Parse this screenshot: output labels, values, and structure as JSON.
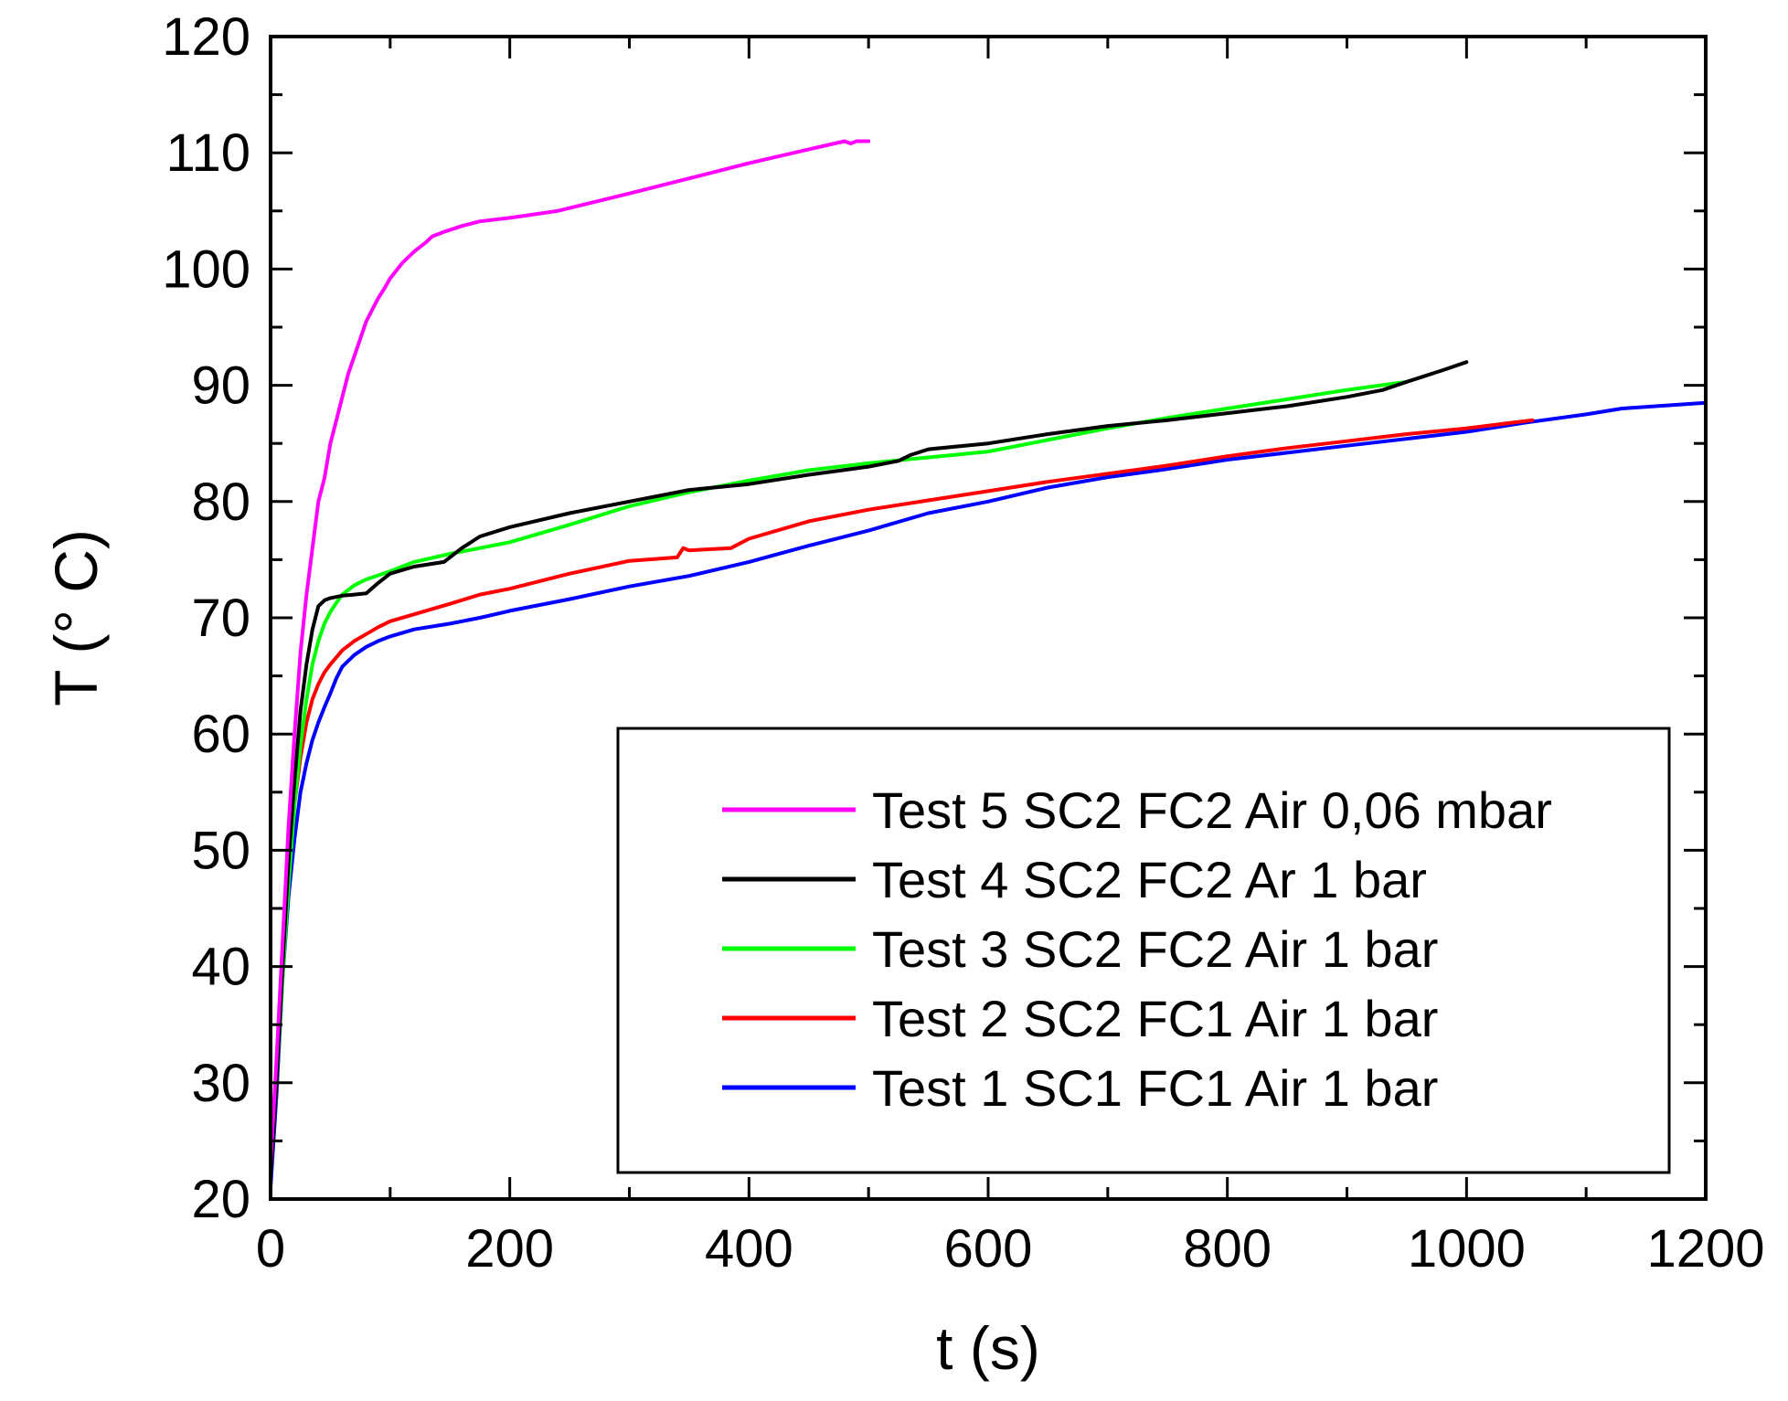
{
  "chart_data": {
    "type": "line",
    "title": "",
    "xlabel": "t (s)",
    "ylabel": "T (° C)",
    "xlim": [
      0,
      1200
    ],
    "ylim": [
      20,
      120
    ],
    "xticks": [
      0,
      200,
      400,
      600,
      800,
      1000,
      1200
    ],
    "yticks": [
      20,
      30,
      40,
      50,
      60,
      70,
      80,
      90,
      100,
      110,
      120
    ],
    "xtick_labels": [
      "0",
      "200",
      "400",
      "600",
      "800",
      "1000",
      "1200"
    ],
    "ytick_labels": [
      "20",
      "30",
      "40",
      "50",
      "60",
      "70",
      "80",
      "90",
      "100",
      "110",
      "120"
    ],
    "grid": false,
    "legend_position": "bottom-right",
    "series": [
      {
        "name": "Test 5 SC2 FC2 Air 0,06 mbar",
        "color": "#ff00ff",
        "x": [
          0,
          5,
          10,
          15,
          20,
          25,
          30,
          35,
          40,
          45,
          50,
          55,
          60,
          65,
          70,
          75,
          80,
          85,
          90,
          95,
          100,
          110,
          120,
          130,
          135,
          145,
          160,
          175,
          200,
          220,
          240,
          260,
          300,
          350,
          400,
          450,
          480,
          485,
          490,
          495,
          500
        ],
        "values": [
          23,
          32,
          42,
          52,
          60,
          67,
          72,
          76,
          80,
          82,
          85,
          87,
          89,
          91,
          92.5,
          94,
          95.5,
          96.5,
          97.5,
          98.3,
          99.2,
          100.5,
          101.5,
          102.3,
          102.8,
          103.2,
          103.7,
          104.1,
          104.4,
          104.7,
          105,
          105.5,
          106.5,
          107.8,
          109.1,
          110.3,
          111,
          110.8,
          111,
          111,
          111
        ]
      },
      {
        "name": "Test 4 SC2 FC2 Ar 1 bar",
        "color": "#000000",
        "x": [
          0,
          5,
          10,
          15,
          20,
          25,
          30,
          35,
          40,
          45,
          50,
          60,
          70,
          80,
          90,
          100,
          120,
          145,
          160,
          175,
          200,
          250,
          300,
          350,
          400,
          450,
          500,
          525,
          535,
          550,
          600,
          650,
          700,
          750,
          800,
          850,
          900,
          930,
          950,
          980,
          1000
        ],
        "values": [
          22,
          30,
          40,
          49,
          56,
          62,
          66,
          69,
          71,
          71.5,
          71.7,
          71.9,
          72,
          72.1,
          73,
          73.8,
          74.4,
          74.8,
          76,
          77,
          77.8,
          79,
          80,
          81,
          81.5,
          82.3,
          83,
          83.5,
          84,
          84.5,
          85,
          85.8,
          86.5,
          87,
          87.6,
          88.2,
          89,
          89.6,
          90.3,
          91.3,
          92
        ]
      },
      {
        "name": "Test 3 SC2 FC2 Air 1 bar",
        "color": "#00ff00",
        "x": [
          0,
          5,
          10,
          15,
          20,
          25,
          30,
          35,
          40,
          45,
          50,
          55,
          60,
          70,
          80,
          100,
          120,
          150,
          175,
          200,
          250,
          300,
          350,
          400,
          450,
          500,
          550,
          600,
          650,
          700,
          750,
          800,
          850,
          900,
          950
        ],
        "values": [
          22,
          30,
          39,
          47,
          54,
          59,
          63,
          66,
          68,
          69.5,
          70.5,
          71.3,
          72,
          72.8,
          73.3,
          74,
          74.8,
          75.5,
          76,
          76.5,
          78,
          79.6,
          80.8,
          81.8,
          82.7,
          83.3,
          83.8,
          84.3,
          85.3,
          86.3,
          87.2,
          88,
          88.8,
          89.6,
          90.3
        ]
      },
      {
        "name": "Test 2 SC2 FC1 Air 1 bar",
        "color": "#ff0000",
        "x": [
          0,
          5,
          10,
          15,
          20,
          25,
          30,
          35,
          40,
          45,
          50,
          60,
          70,
          80,
          90,
          100,
          120,
          150,
          175,
          200,
          250,
          300,
          340,
          345,
          350,
          385,
          400,
          450,
          500,
          550,
          600,
          650,
          700,
          750,
          800,
          850,
          900,
          950,
          1000,
          1055
        ],
        "values": [
          22,
          30,
          40,
          48,
          54,
          58,
          61,
          63,
          64.3,
          65.3,
          66,
          67.2,
          68,
          68.6,
          69.2,
          69.7,
          70.3,
          71.2,
          72,
          72.5,
          73.8,
          74.9,
          75.2,
          76,
          75.8,
          76,
          76.8,
          78.3,
          79.3,
          80.1,
          80.9,
          81.7,
          82.4,
          83.1,
          83.9,
          84.6,
          85.2,
          85.8,
          86.3,
          87
        ]
      },
      {
        "name": "Test 1 SC1 FC1 Air 1 bar",
        "color": "#0000ff",
        "x": [
          0,
          5,
          10,
          15,
          20,
          25,
          30,
          35,
          40,
          45,
          50,
          55,
          60,
          70,
          80,
          90,
          100,
          120,
          150,
          175,
          200,
          250,
          300,
          350,
          400,
          450,
          500,
          550,
          600,
          650,
          700,
          750,
          800,
          850,
          900,
          950,
          1000,
          1050,
          1100,
          1130,
          1200
        ],
        "values": [
          21,
          29,
          39,
          46,
          51,
          55,
          57.5,
          59.5,
          61,
          62.3,
          63.5,
          64.8,
          65.8,
          66.8,
          67.5,
          68,
          68.4,
          69,
          69.5,
          70,
          70.6,
          71.6,
          72.7,
          73.6,
          74.8,
          76.2,
          77.5,
          79,
          80,
          81.2,
          82.1,
          82.8,
          83.6,
          84.2,
          84.8,
          85.4,
          86,
          86.8,
          87.5,
          88,
          88.5
        ]
      }
    ]
  }
}
